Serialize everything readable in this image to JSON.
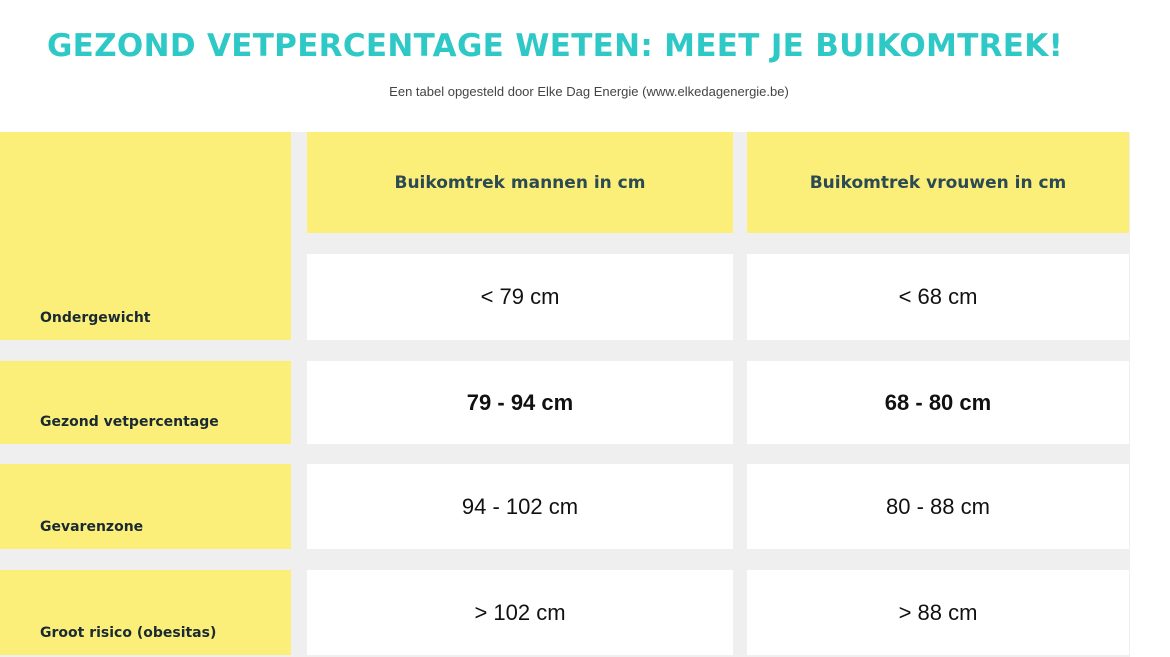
{
  "header": {
    "title": "GEZOND VETPERCENTAGE WETEN: MEET JE BUIKOMTREK!",
    "subtitle": "Een tabel opgesteld door Elke Dag Energie (www.elkedagenergie.be)"
  },
  "table": {
    "columns": [
      "Buikomtrek mannen in cm",
      "Buikomtrek vrouwen in cm"
    ],
    "rows": [
      [
        "Ondergewicht",
        "< 79 cm",
        "< 68 cm"
      ],
      [
        "Gezond vetpercentage",
        "79 - 94 cm",
        "68 - 80 cm"
      ],
      [
        "Gevarenzone",
        "94 - 102 cm",
        "80 - 88 cm"
      ],
      [
        "Groot risico (obesitas)",
        "> 102 cm",
        "> 88 cm"
      ]
    ]
  }
}
